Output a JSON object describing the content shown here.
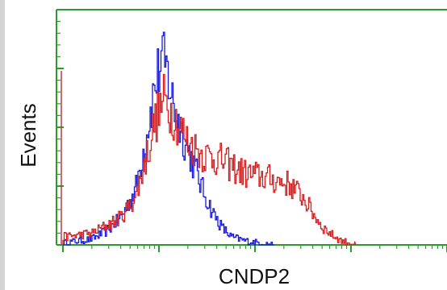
{
  "chart_data": {
    "type": "line",
    "title": "",
    "xlabel": "CNDP2",
    "ylabel": "Events",
    "x_scale": "log",
    "x_decades": 4,
    "xlim": [
      0,
      4
    ],
    "ylim": [
      0,
      100
    ],
    "grid": false,
    "legend": "none",
    "frame_color": "#2e9a2e",
    "series": [
      {
        "color": "#1a1adc",
        "x": [
          0.0,
          0.15,
          0.3,
          0.45,
          0.6,
          0.75,
          0.85,
          0.95,
          1.02,
          1.08,
          1.15,
          1.25,
          1.35,
          1.45,
          1.55,
          1.65,
          1.75,
          1.9,
          2.05,
          2.2
        ],
        "values": [
          1,
          2,
          3,
          7,
          14,
          28,
          52,
          80,
          94,
          88,
          70,
          55,
          42,
          28,
          17,
          9,
          4,
          2,
          1,
          0
        ]
      },
      {
        "color": "#d42020",
        "x": [
          0.0,
          0.15,
          0.3,
          0.45,
          0.6,
          0.75,
          0.85,
          0.95,
          1.05,
          1.15,
          1.3,
          1.45,
          1.6,
          1.75,
          1.9,
          2.05,
          2.2,
          2.35,
          2.5,
          2.6,
          2.7,
          2.8,
          2.9,
          3.0,
          3.05
        ],
        "values": [
          4,
          5,
          6,
          10,
          14,
          24,
          42,
          62,
          74,
          66,
          52,
          46,
          44,
          40,
          36,
          35,
          33,
          31,
          24,
          16,
          9,
          5,
          2,
          1,
          0
        ]
      }
    ]
  }
}
